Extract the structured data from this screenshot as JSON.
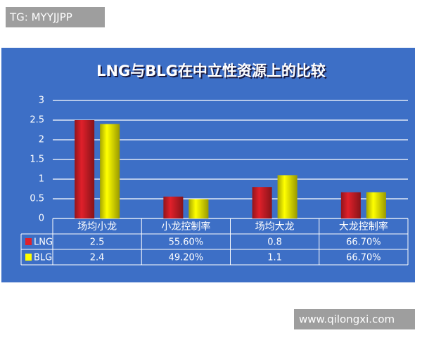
{
  "chart_data": {
    "type": "bar",
    "title": "LNG与BLG在中立性资源上的比较",
    "categories": [
      "场均小龙",
      "小龙控制率",
      "场均大龙",
      "大龙控制率"
    ],
    "series": [
      {
        "name": "LNG",
        "color": "#e0202a",
        "values": [
          2.5,
          0.556,
          0.8,
          0.667
        ],
        "value_labels": [
          "2.5",
          "55.60%",
          "0.8",
          "66.70%"
        ]
      },
      {
        "name": "BLG",
        "color": "#ffff00",
        "values": [
          2.4,
          0.492,
          1.1,
          0.667
        ],
        "value_labels": [
          "2.4",
          "49.20%",
          "1.1",
          "66.70%"
        ]
      }
    ],
    "ylim": [
      0,
      3
    ],
    "yticks": [
      0,
      0.5,
      1,
      1.5,
      2,
      2.5,
      3
    ],
    "grid": true
  },
  "watermarks": [
    "TG: MYYJJPP",
    "www.qilongxi.com"
  ]
}
